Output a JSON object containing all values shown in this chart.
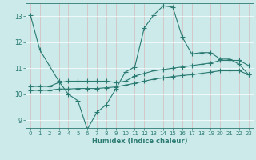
{
  "title": "",
  "xlabel": "Humidex (Indice chaleur)",
  "ylabel": "",
  "bg_color": "#cceaea",
  "grid_color": "#c0d8d8",
  "line_color": "#2a7a72",
  "xlim": [
    -0.5,
    23.5
  ],
  "ylim": [
    8.7,
    13.5
  ],
  "xticks": [
    0,
    1,
    2,
    3,
    4,
    5,
    6,
    7,
    8,
    9,
    10,
    11,
    12,
    13,
    14,
    15,
    16,
    17,
    18,
    19,
    20,
    21,
    22,
    23
  ],
  "yticks": [
    9,
    10,
    11,
    12,
    13
  ],
  "line1_x": [
    0,
    1,
    2,
    3,
    4,
    5,
    6,
    7,
    8,
    9,
    10,
    11,
    12,
    13,
    14,
    15,
    16,
    17,
    18,
    19,
    20,
    21,
    22,
    23
  ],
  "line1_y": [
    13.05,
    11.7,
    11.1,
    10.5,
    10.0,
    9.75,
    8.65,
    9.3,
    9.6,
    10.2,
    10.85,
    11.05,
    12.55,
    13.05,
    13.4,
    13.35,
    12.2,
    11.55,
    11.6,
    11.6,
    11.35,
    11.35,
    11.15,
    10.75
  ],
  "line2_x": [
    0,
    1,
    2,
    3,
    4,
    5,
    6,
    7,
    8,
    9,
    10,
    11,
    12,
    13,
    14,
    15,
    16,
    17,
    18,
    19,
    20,
    21,
    22,
    23
  ],
  "line2_y": [
    10.3,
    10.3,
    10.3,
    10.45,
    10.5,
    10.5,
    10.5,
    10.5,
    10.5,
    10.45,
    10.5,
    10.7,
    10.8,
    10.9,
    10.95,
    11.0,
    11.05,
    11.1,
    11.15,
    11.2,
    11.3,
    11.3,
    11.3,
    11.1
  ],
  "line3_x": [
    0,
    1,
    2,
    3,
    4,
    5,
    6,
    7,
    8,
    9,
    10,
    11,
    12,
    13,
    14,
    15,
    16,
    17,
    18,
    19,
    20,
    21,
    22,
    23
  ],
  "line3_y": [
    10.15,
    10.15,
    10.15,
    10.2,
    10.2,
    10.22,
    10.22,
    10.22,
    10.25,
    10.28,
    10.35,
    10.42,
    10.5,
    10.58,
    10.63,
    10.68,
    10.72,
    10.75,
    10.8,
    10.85,
    10.9,
    10.9,
    10.9,
    10.75
  ]
}
